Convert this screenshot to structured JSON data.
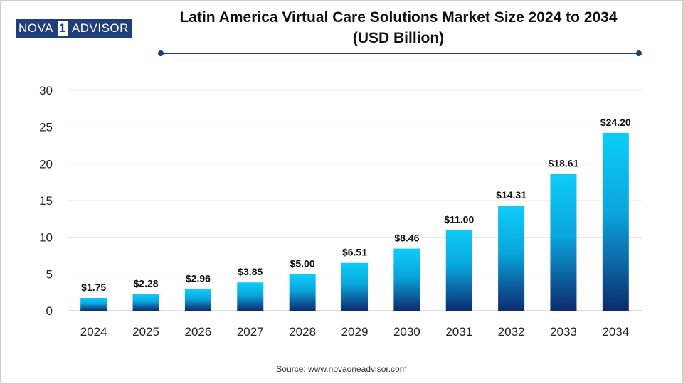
{
  "brand": {
    "part1": "NOVA",
    "mark": "1",
    "part2": "ADVISOR"
  },
  "title": {
    "line1": "Latin America Virtual Care Solutions Market Size 2024 to 2034",
    "line2": "(USD Billion)"
  },
  "source": "Source: www.novaoneadvisor.com",
  "colors": {
    "bar_top": "#0ccdf8",
    "bar_bottom": "#0d2b6e",
    "accent": "#1f3f7a",
    "grid": "#e6e6e6"
  },
  "chart_data": {
    "type": "bar",
    "title": "Latin America Virtual Care Solutions Market Size 2024 to 2034 (USD Billion)",
    "xlabel": "",
    "ylabel": "",
    "categories": [
      "2024",
      "2025",
      "2026",
      "2027",
      "2028",
      "2029",
      "2030",
      "2031",
      "2032",
      "2033",
      "2034"
    ],
    "values": [
      1.75,
      2.28,
      2.96,
      3.85,
      5.0,
      6.51,
      8.46,
      11.0,
      14.31,
      18.61,
      24.2
    ],
    "labels": [
      "$1.75",
      "$2.28",
      "$2.96",
      "$3.85",
      "$5.00",
      "$6.51",
      "$8.46",
      "$11.00",
      "$14.31",
      "$18.61",
      "$24.20"
    ],
    "ylim": [
      0,
      30
    ],
    "yticks": [
      0,
      5,
      10,
      15,
      20,
      25,
      30
    ],
    "grid": true
  }
}
